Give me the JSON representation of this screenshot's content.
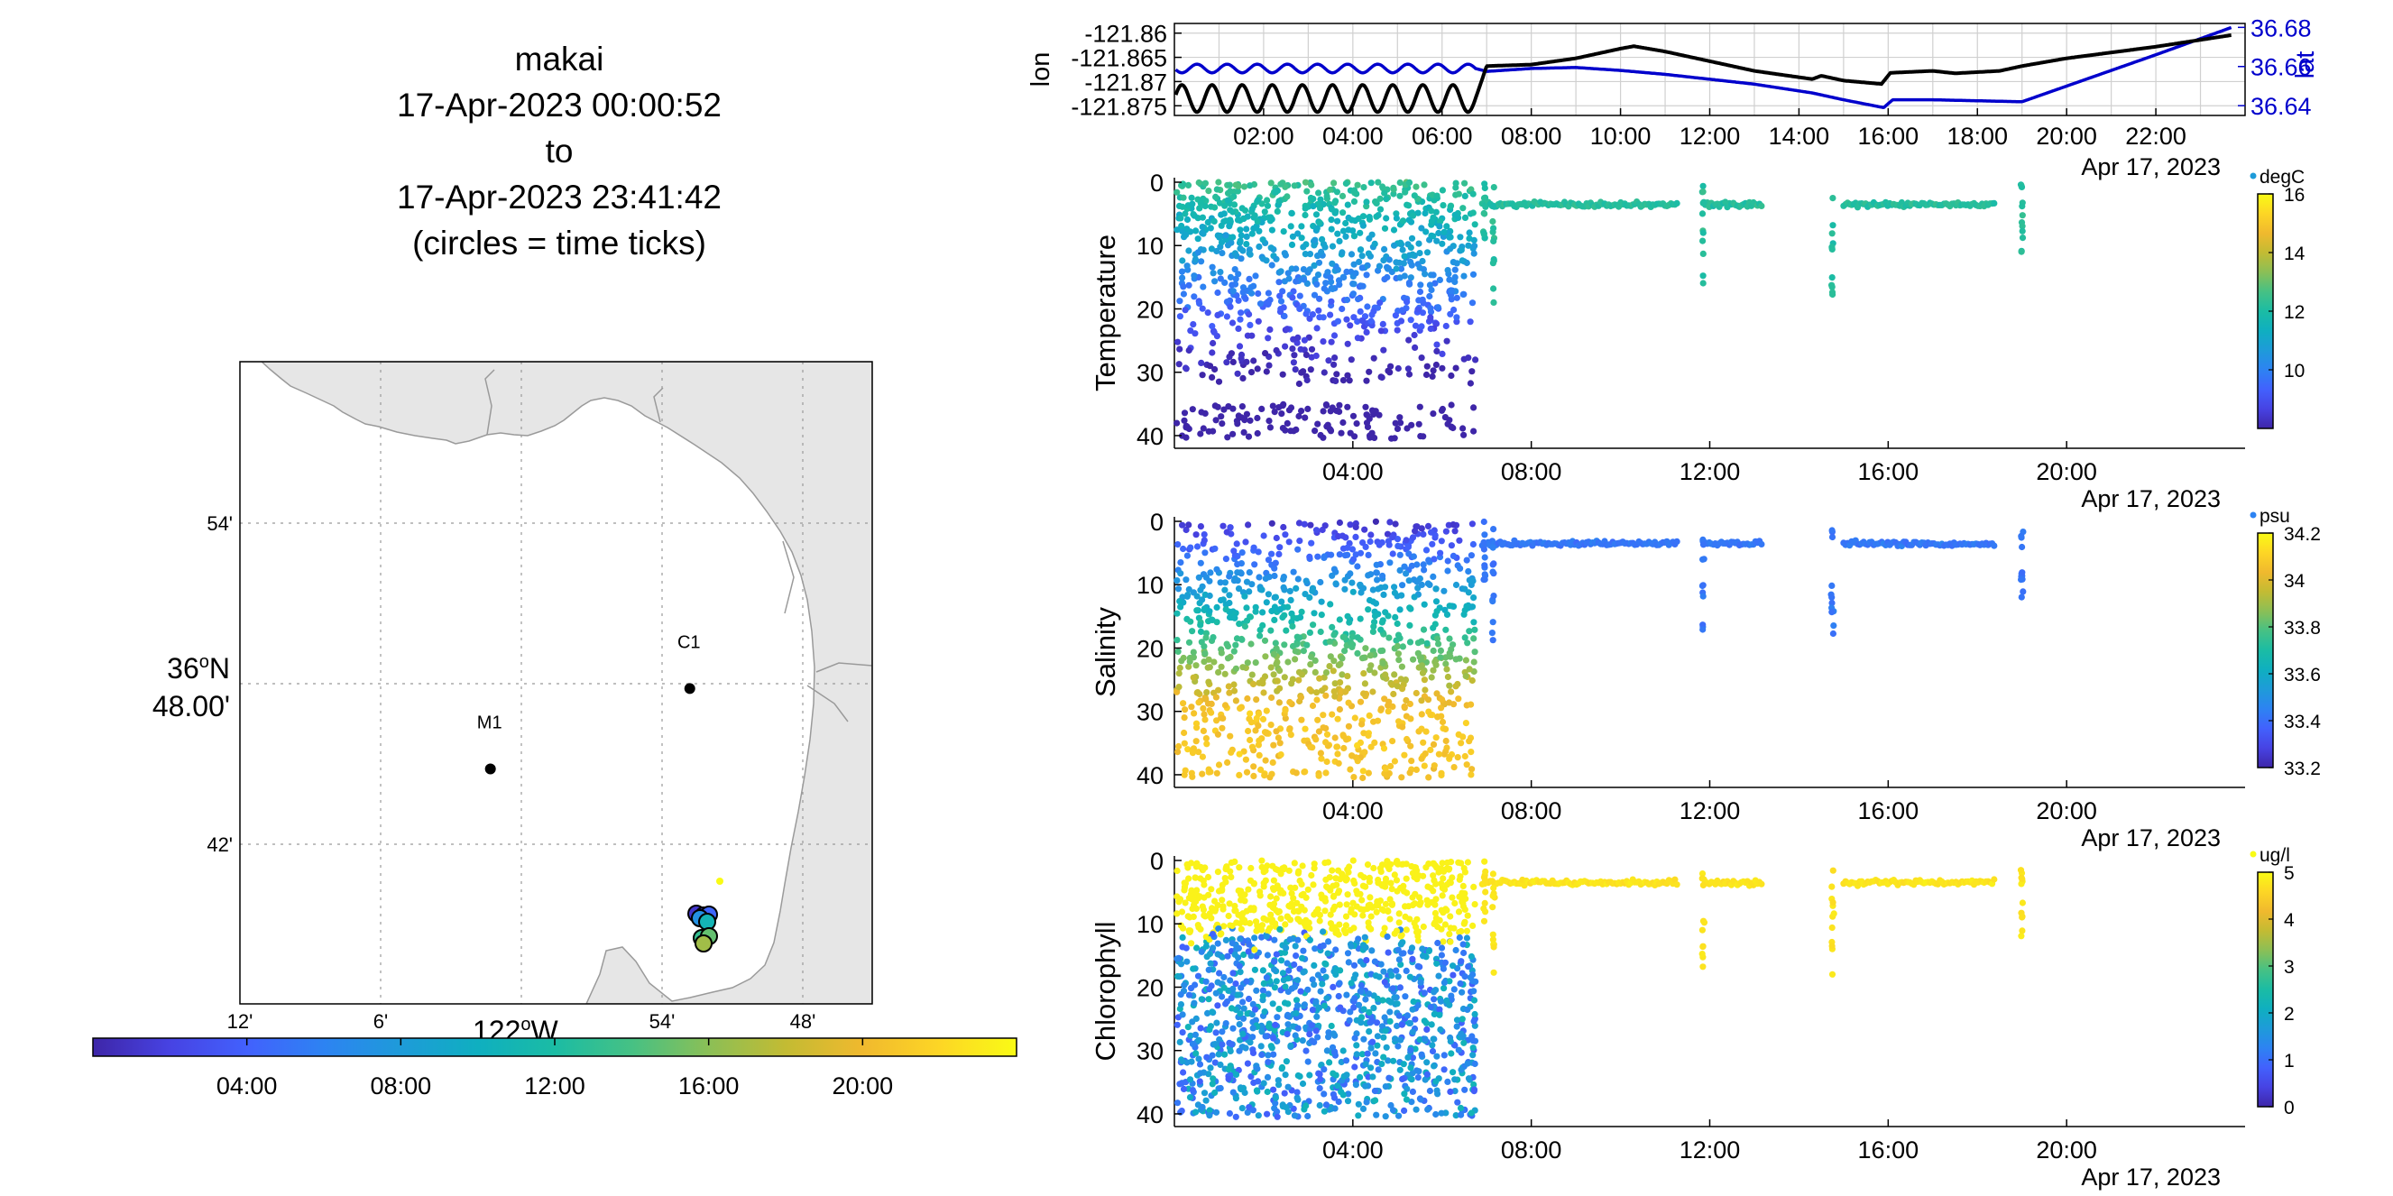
{
  "title": {
    "line1": "makai",
    "line2": "17-Apr-2023 00:00:52",
    "line3": "to",
    "line4": "17-Apr-2023 23:41:42",
    "line5": "(circles = time ticks)"
  },
  "colors": {
    "lon_line": "#000000",
    "lat_line": "#0000cc",
    "land": "#e6e6e6",
    "coast": "#999999",
    "parula": [
      "#3e26a8",
      "#4743e3",
      "#4261fd",
      "#2d83f2",
      "#1e9bd9",
      "#0fafc0",
      "#1bbca4",
      "#46c184",
      "#8bbf56",
      "#c3bb33",
      "#f0b92e",
      "#fdd625",
      "#f9fb15"
    ]
  },
  "chart_data": [
    {
      "type": "map",
      "x_ticks": [
        "12'",
        "6'",
        "54'",
        "48'"
      ],
      "y_ticks": [
        "54'",
        "42'"
      ],
      "y_label_line1": "36",
      "y_label_deg": "o",
      "y_label_line1_suffix": "N",
      "y_label_line2": "48.00'",
      "x_label": "122",
      "x_label_deg": "o",
      "x_label_suffix": "W",
      "stations": [
        {
          "name": "C1",
          "lon": -121.8803,
          "lat": 36.797
        },
        {
          "name": "M1",
          "lon": -122.022,
          "lat": 36.747
        }
      ],
      "track_lon_range": [
        -121.92,
        -121.86
      ],
      "track_lat_range": [
        36.64,
        36.7
      ],
      "grid": true
    },
    {
      "type": "colorbar",
      "orientation": "horizontal",
      "ticks": [
        "04:00",
        "08:00",
        "12:00",
        "16:00",
        "20:00"
      ]
    },
    {
      "type": "line",
      "x_ticks": [
        "02:00",
        "04:00",
        "06:00",
        "08:00",
        "10:00",
        "12:00",
        "14:00",
        "16:00",
        "18:00",
        "20:00",
        "22:00"
      ],
      "x_date_label": "Apr 17, 2023",
      "ylabel": "lon",
      "y2label": "lat",
      "y_ticks": [
        "-121.86",
        "-121.865",
        "-121.87",
        "-121.875"
      ],
      "y2_ticks": [
        "36.68",
        "36.66",
        "36.64"
      ],
      "ylim": [
        -121.877,
        -121.858
      ],
      "y2lim": [
        36.635,
        36.682
      ],
      "series": [
        {
          "name": "lon",
          "x": [
            0,
            6.75,
            7,
            8,
            9,
            10,
            10.3,
            11,
            12,
            13,
            14.3,
            14.5,
            15,
            15.85,
            16.05,
            17,
            17.5,
            18.5,
            19,
            20,
            21,
            22,
            23.7
          ],
          "y": [
            -121.8735,
            -121.8735,
            -121.8668,
            -121.8665,
            -121.8652,
            -121.8632,
            -121.8627,
            -121.8638,
            -121.8658,
            -121.8678,
            -121.8695,
            -121.8688,
            -121.8698,
            -121.8705,
            -121.8682,
            -121.8678,
            -121.8683,
            -121.8678,
            -121.8668,
            -121.8652,
            -121.864,
            -121.8628,
            -121.8604
          ]
        },
        {
          "name": "lat",
          "x": [
            0,
            6.75,
            7,
            8,
            9,
            10,
            11,
            12,
            13,
            14.3,
            15,
            15.9,
            16.1,
            17,
            19,
            20,
            21,
            22,
            23.7
          ],
          "y": [
            36.659,
            36.659,
            36.6575,
            36.659,
            36.6595,
            36.658,
            36.656,
            36.6535,
            36.651,
            36.6465,
            36.643,
            36.639,
            36.643,
            36.643,
            36.642,
            36.65,
            36.658,
            36.666,
            36.68
          ]
        }
      ],
      "oscillation_periods": 10,
      "grid": true
    },
    {
      "type": "scatter",
      "ylabel": "Temperature",
      "unit": "degC",
      "x_ticks": [
        "04:00",
        "08:00",
        "12:00",
        "16:00",
        "20:00"
      ],
      "x_date_label": "Apr 17, 2023",
      "y_ticks": [
        "0",
        "10",
        "20",
        "30",
        "40"
      ],
      "ylim": [
        0,
        42
      ],
      "c_ticks": [
        "16",
        "14",
        "12",
        "10"
      ],
      "clim": [
        8,
        16
      ],
      "profile_depth_max": 40,
      "surface_depth": 3.5
    },
    {
      "type": "scatter",
      "ylabel": "Salinity",
      "unit": "psu",
      "x_ticks": [
        "04:00",
        "08:00",
        "12:00",
        "16:00",
        "20:00"
      ],
      "x_date_label": "Apr 17, 2023",
      "y_ticks": [
        "0",
        "10",
        "20",
        "30",
        "40"
      ],
      "ylim": [
        0,
        42
      ],
      "c_ticks": [
        "34.2",
        "34",
        "33.8",
        "33.6",
        "33.4",
        "33.2"
      ],
      "clim": [
        33.2,
        34.2
      ],
      "profile_depth_max": 40,
      "surface_depth": 3.5
    },
    {
      "type": "scatter",
      "ylabel": "Chlorophyll",
      "unit": "ug/l",
      "x_ticks": [
        "04:00",
        "08:00",
        "12:00",
        "16:00",
        "20:00"
      ],
      "x_date_label": "Apr 17, 2023",
      "y_ticks": [
        "0",
        "10",
        "20",
        "30",
        "40"
      ],
      "ylim": [
        0,
        42
      ],
      "c_ticks": [
        "5",
        "4",
        "3",
        "2",
        "1",
        "0"
      ],
      "clim": [
        0,
        5
      ],
      "profile_depth_max": 40,
      "surface_depth": 3.5
    }
  ]
}
